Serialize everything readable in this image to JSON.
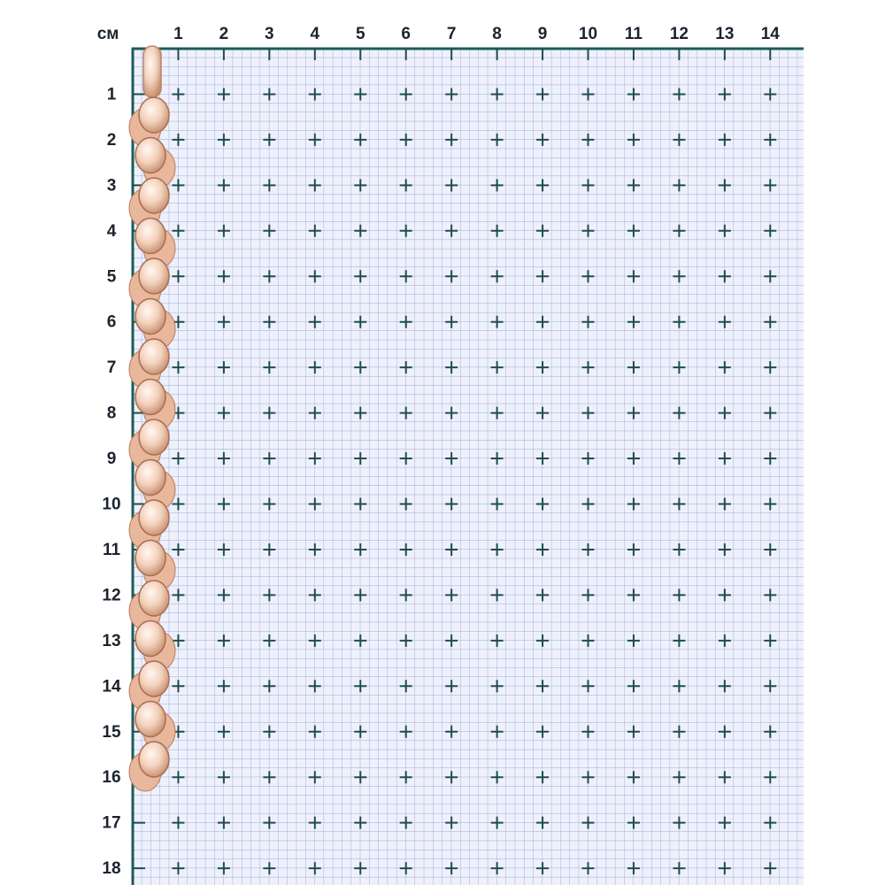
{
  "unit": "см",
  "columns": [
    "1",
    "2",
    "3",
    "4",
    "5",
    "6",
    "7",
    "8",
    "9",
    "10",
    "11",
    "12",
    "13",
    "14"
  ],
  "rows": [
    "1",
    "2",
    "3",
    "4",
    "5",
    "6",
    "7",
    "8",
    "9",
    "10",
    "11",
    "12",
    "13",
    "14",
    "15",
    "16",
    "17",
    "18"
  ]
}
